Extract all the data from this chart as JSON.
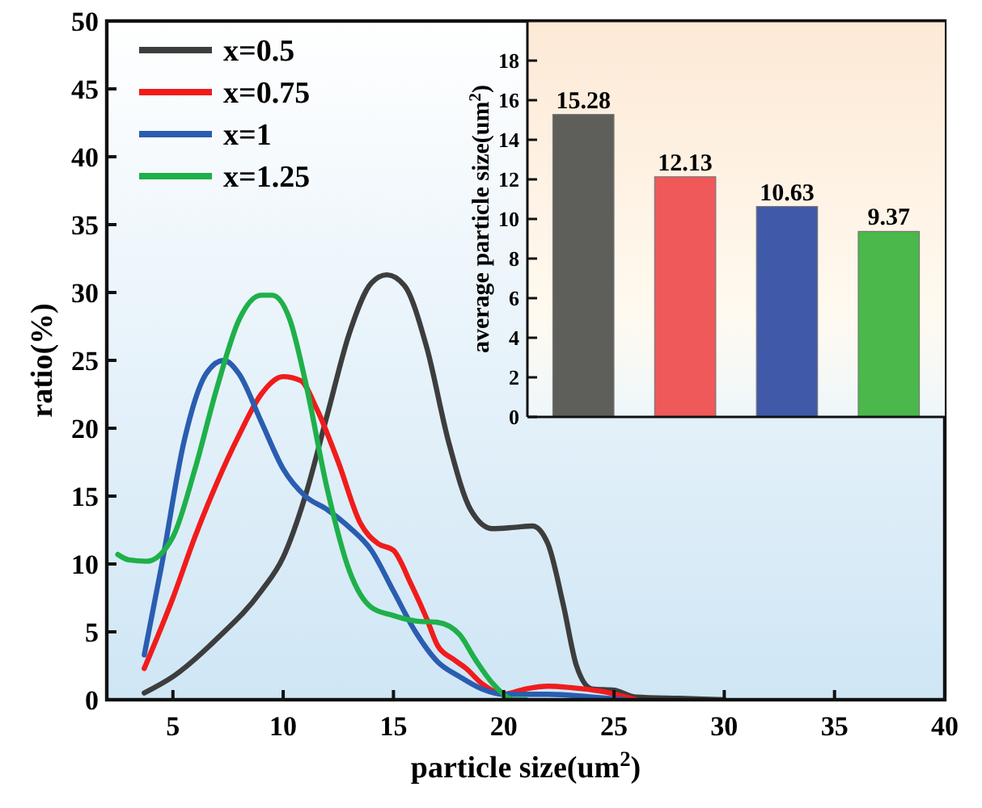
{
  "chart_data": [
    {
      "type": "line",
      "xlabel": "particle size(um$^{2}$)",
      "ylabel": "ratio(%)",
      "xlim": [
        2,
        40
      ],
      "ylim": [
        0,
        50
      ],
      "xticks": [
        5,
        10,
        15,
        20,
        25,
        30,
        35,
        40
      ],
      "yticks": [
        0,
        5,
        10,
        15,
        20,
        25,
        30,
        35,
        40,
        45,
        50
      ],
      "legend": "top left",
      "series": [
        {
          "name": "x=0.5",
          "color": "#3d3d3d",
          "x": [
            3.7,
            5,
            7,
            9,
            10,
            11,
            12,
            13,
            14,
            14.7,
            15.5,
            16.5,
            17.5,
            18.5,
            19.5,
            20.5,
            21.3,
            22,
            22.7,
            23.3,
            24,
            25,
            26,
            28,
            30
          ],
          "values": [
            0.5,
            1.7,
            4.5,
            8,
            10.5,
            15,
            21,
            27,
            30.7,
            31.3,
            30.5,
            26,
            19,
            14,
            12.6,
            12.7,
            12.8,
            11.5,
            7,
            2.5,
            0.8,
            0.7,
            0.2,
            0.1,
            0
          ]
        },
        {
          "name": "x=0.75",
          "color": "#f01c1c",
          "x": [
            3.7,
            5,
            6,
            7,
            8,
            9,
            10,
            10.8,
            11.5,
            12.5,
            13.5,
            14.3,
            15,
            15.8,
            16.5,
            17,
            17.7,
            18.3,
            19,
            20,
            21,
            22,
            23,
            24.5,
            26
          ],
          "values": [
            2.3,
            7.5,
            12,
            16,
            19.5,
            22.5,
            23.8,
            23.5,
            21.5,
            17.5,
            13,
            11.5,
            11,
            8.5,
            6,
            4,
            3,
            2.3,
            1.2,
            0.4,
            0.8,
            1,
            0.9,
            0.6,
            0
          ]
        },
        {
          "name": "x=1",
          "color": "#2a5db0",
          "x": [
            3.7,
            4.5,
            5.5,
            6.5,
            7.3,
            8,
            9,
            10,
            11,
            12,
            13,
            14,
            15,
            16,
            17,
            18,
            19,
            20,
            22,
            24,
            25.5
          ],
          "values": [
            3.3,
            10,
            19,
            24,
            25,
            24,
            20.5,
            17,
            15,
            14,
            12.7,
            11,
            8,
            5,
            2.8,
            1.7,
            0.8,
            0.4,
            0.4,
            0.2,
            0
          ]
        },
        {
          "name": "x=1.25",
          "color": "#1fb04a",
          "x": [
            2.5,
            3,
            3.8,
            5,
            6,
            7,
            8,
            9,
            9.5,
            10.3,
            11,
            12,
            13,
            14,
            15,
            16,
            17,
            18,
            18.7,
            19.5,
            20.5,
            21
          ],
          "values": [
            10.7,
            10.3,
            10.2,
            12,
            17,
            23,
            28,
            29.8,
            29.8,
            28,
            23.5,
            15.5,
            9.5,
            6.8,
            6.2,
            5.8,
            5.7,
            4.8,
            3,
            1.2,
            0,
            0
          ]
        }
      ]
    },
    {
      "type": "bar",
      "ylabel": "average particle size(um$^{2}$)",
      "categories": [
        null,
        null,
        null,
        null
      ],
      "values": [
        15.28,
        12.13,
        10.63,
        9.37
      ],
      "colors": [
        "#5e5e5a",
        "#ef5959",
        "#4059a8",
        "#4ab84a"
      ],
      "ylim": [
        0,
        20
      ],
      "yticks": [
        0,
        2,
        4,
        6,
        8,
        10,
        12,
        14,
        16,
        18
      ],
      "data_labels": true
    }
  ]
}
